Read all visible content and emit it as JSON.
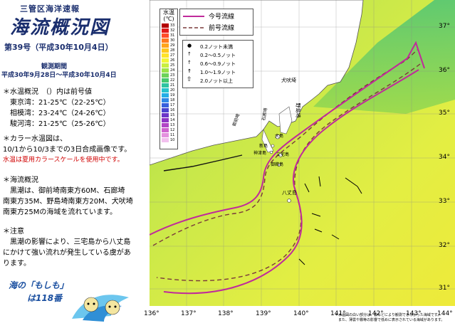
{
  "header": {
    "org": "三管区海洋速報",
    "title": "海流概況図",
    "issue": "第39号（平成30年10月4日）",
    "obs_heading": "観測期間",
    "obs_range": "平成30年9月28日～平成30年10月4日"
  },
  "temps": {
    "heading": "＊水温概況　（）内は前号値",
    "rows": [
      "東京湾：21-25℃（22-25℃）",
      "相模湾：23-24℃（24-26℃）",
      "駿河湾：21-25℃（25-26℃）"
    ]
  },
  "color_note": {
    "heading": "＊カラー水温図は、",
    "line1": "10/1から10/3までの3日合成画像です。",
    "red": "水温は夏用カラースケールを使用中です。"
  },
  "current": {
    "heading": "＊海流概況",
    "lines": [
      "黒潮は、御前埼南東方60M、石廊埼",
      "南東方35M、野島埼南東方20M、犬吠埼",
      "南東方25Mの海域を流れています。"
    ]
  },
  "caution": {
    "heading": "＊注意",
    "lines": [
      "黒潮の影響により、三宅島から八丈島",
      "にかけて強い流れが発生している虞があ",
      "ります。"
    ]
  },
  "banner": {
    "line1": "海の「もしも」",
    "line2": "は118番"
  },
  "legend": {
    "title1": "水温",
    "title2": "(℃)",
    "values": [
      "33",
      "32",
      "31",
      "30",
      "29",
      "28",
      "27",
      "26",
      "25",
      "24",
      "23",
      "22",
      "21",
      "20",
      "19",
      "18",
      "17",
      "16",
      "15",
      "14",
      "13",
      "12",
      "11",
      "10"
    ],
    "colors": [
      "#b40000",
      "#e21b1b",
      "#ff4d2a",
      "#ff7a1f",
      "#ffa41c",
      "#ffc81e",
      "#ffe32a",
      "#f2f537",
      "#c9ef40",
      "#9ce248",
      "#6dd358",
      "#46c86e",
      "#2fc4a0",
      "#27c3cc",
      "#25aee6",
      "#2f88e6",
      "#3760dc",
      "#4a43cf",
      "#6b35c8",
      "#8e35c4",
      "#b145c6",
      "#cf64cf",
      "#e490de",
      "#f2c0ee"
    ]
  },
  "line_legend": {
    "current": "今号流線",
    "previous": "前号流線"
  },
  "speed_legend": [
    "0.2ノット未満",
    "0.2～0.5ノット",
    "0.6～0.9ノット",
    "1.0～1.9ノット",
    "2.0ノット以上"
  ],
  "places": {
    "inubo": "犬吠埼",
    "nojima": "野島埼",
    "oshima": "大島",
    "niijima": "新島",
    "kozu": "神津島",
    "miyake": "三宅島",
    "mikura": "御蔵島",
    "hachijo": "八丈島",
    "iro": "石廊埼",
    "omae": "御前埼"
  },
  "lon_labels": [
    "136°",
    "137°",
    "138°",
    "139°",
    "140°",
    "141°",
    "142°",
    "143°",
    "144°"
  ],
  "lat_labels": [
    "37°",
    "36°",
    "35°",
    "34°",
    "33°",
    "32°",
    "31°"
  ],
  "note": {
    "line1": "＊水温図の白い部分は、雲などにより観測できなかった海域です。",
    "line2": "　また、薄雲や霧等の影響で低めに表示されている海域があります。"
  }
}
